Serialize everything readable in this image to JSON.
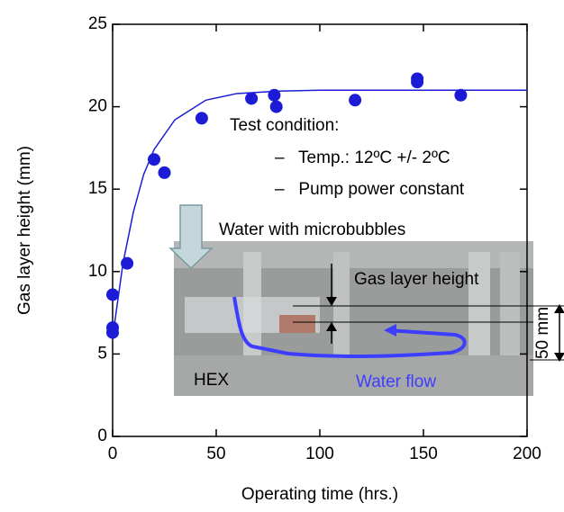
{
  "chart_data": {
    "type": "scatter",
    "xlabel": "Operating time (hrs.)",
    "ylabel": "Gas layer height (mm)",
    "xlim": [
      0,
      200
    ],
    "xticks": [
      0,
      50,
      100,
      150,
      200
    ],
    "ylim": [
      0,
      25
    ],
    "yticks": [
      0,
      5,
      10,
      15,
      20,
      25
    ],
    "series": [
      {
        "style": "marker",
        "color": "#1c1cd6",
        "x": [
          0,
          0,
          0,
          7,
          20,
          25,
          43,
          67,
          78,
          79,
          117,
          147,
          147,
          168
        ],
        "values": [
          6.3,
          6.6,
          8.6,
          10.5,
          16.8,
          16,
          19.3,
          20.5,
          20.7,
          20,
          20.4,
          21.5,
          21.7,
          20.7
        ]
      },
      {
        "style": "line",
        "color": "#1c1cd6",
        "x": [
          0,
          5,
          10,
          15,
          20,
          30,
          45,
          60,
          80,
          100,
          150,
          200
        ],
        "values": [
          6,
          10.5,
          13.6,
          15.9,
          17.4,
          19.2,
          20.4,
          20.8,
          20.95,
          21,
          21,
          21
        ]
      }
    ],
    "annotations": [
      "Test condition:",
      "–   Temp.: 12ºC +/- 2ºC",
      "–   Pump power constant",
      "Water with microbubbles",
      "Gas layer height",
      "50 mm",
      "HEX",
      "Water flow"
    ]
  }
}
